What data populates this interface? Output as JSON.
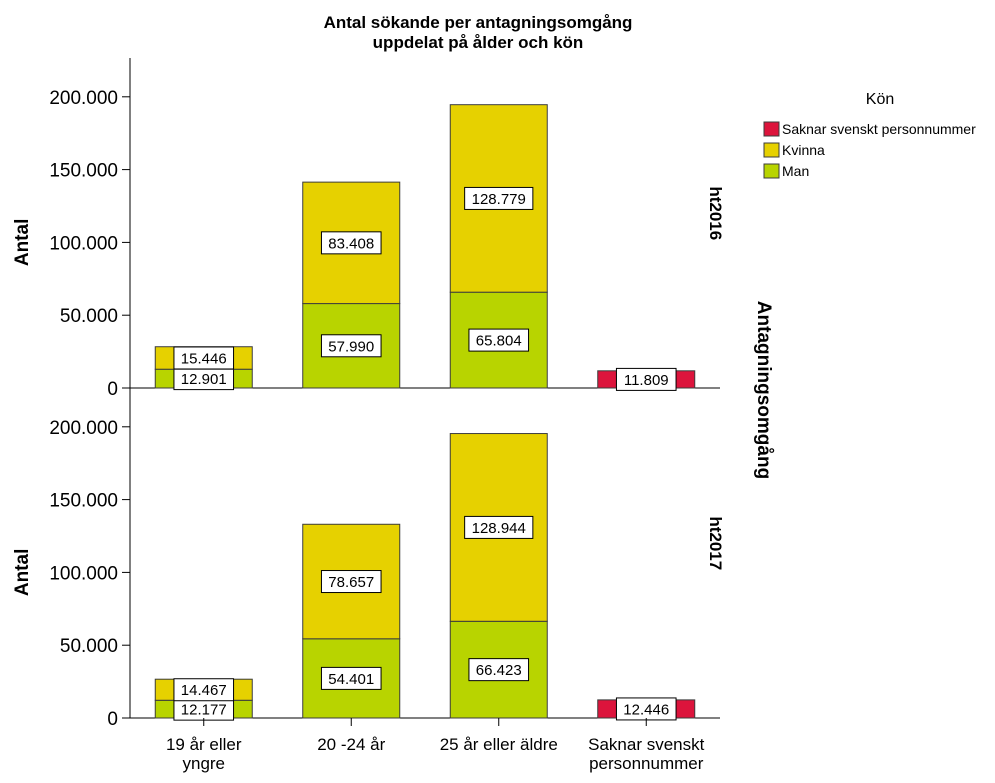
{
  "chart_data": {
    "type": "bar",
    "stacked": true,
    "title": [
      "Antal sökande per antagningsomgång",
      "uppdelat på ålder och kön"
    ],
    "ylabel": "Antal",
    "panel_axis_label": "Antagningsomgång",
    "ylim": [
      0,
      210000
    ],
    "yticks": [
      0,
      50000,
      100000,
      150000,
      200000
    ],
    "ytick_labels": [
      "0",
      "50.000",
      "100.000",
      "150.000",
      "200.000"
    ],
    "categories": [
      "19 år eller yngre",
      "20 -24 år",
      "25 år eller äldre",
      "Saknar svenskt personnummer"
    ],
    "category_labels": [
      [
        "19 år eller",
        "yngre"
      ],
      [
        "20 -24 år"
      ],
      [
        "25 år eller äldre"
      ],
      [
        "Saknar svenskt",
        "personnummer"
      ]
    ],
    "legend": {
      "title": "Kön",
      "position": "top-right",
      "items": [
        {
          "label": "Saknar svenskt personnummer",
          "color": "#dc143c"
        },
        {
          "label": "Kvinna",
          "color": "#e6d100"
        },
        {
          "label": "Man",
          "color": "#b8d400"
        }
      ]
    },
    "panels": [
      {
        "label": "ht2016",
        "series": [
          {
            "name": "Man",
            "color": "#b8d400",
            "values": [
              12901,
              57990,
              65804,
              0
            ],
            "labels": [
              "12.901",
              "57.990",
              "65.804",
              ""
            ]
          },
          {
            "name": "Kvinna",
            "color": "#e6d100",
            "values": [
              15446,
              83408,
              128779,
              0
            ],
            "labels": [
              "15.446",
              "83.408",
              "128.779",
              ""
            ]
          },
          {
            "name": "Saknar svenskt personnummer",
            "color": "#dc143c",
            "values": [
              0,
              0,
              0,
              11809
            ],
            "labels": [
              "",
              "",
              "",
              "11.809"
            ]
          }
        ]
      },
      {
        "label": "ht2017",
        "series": [
          {
            "name": "Man",
            "color": "#b8d400",
            "values": [
              12177,
              54401,
              66423,
              0
            ],
            "labels": [
              "12.177",
              "54.401",
              "66.423",
              ""
            ]
          },
          {
            "name": "Kvinna",
            "color": "#e6d100",
            "values": [
              14467,
              78657,
              128944,
              0
            ],
            "labels": [
              "14.467",
              "78.657",
              "128.944",
              ""
            ]
          },
          {
            "name": "Saknar svenskt personnummer",
            "color": "#dc143c",
            "values": [
              0,
              0,
              0,
              12446
            ],
            "labels": [
              "",
              "",
              "",
              "12.446"
            ]
          }
        ]
      }
    ]
  }
}
